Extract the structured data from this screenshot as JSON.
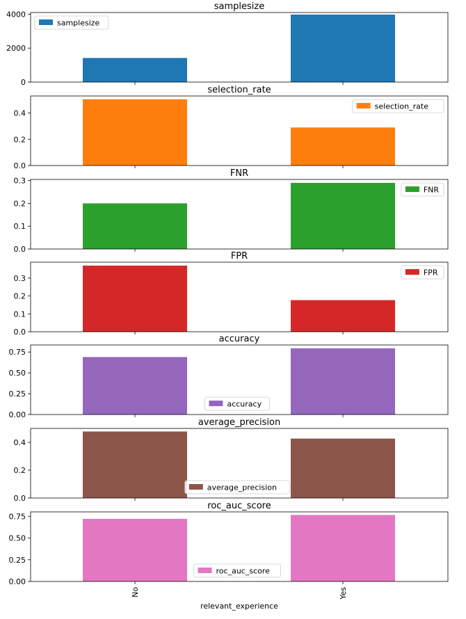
{
  "chart_data": {
    "type": "bar",
    "categories": [
      "No",
      "Yes"
    ],
    "xlabel": "relevant_experience",
    "panels": [
      {
        "title": "samplesize",
        "legend": "samplesize",
        "legend_position": "upper-left",
        "color": "#1f77b4",
        "values": [
          1420,
          3980
        ],
        "ylim": [
          0,
          4100
        ],
        "yticks": [
          0,
          2000,
          4000
        ],
        "ytick_labels": [
          "0",
          "2000",
          "4000"
        ]
      },
      {
        "title": "selection_rate",
        "legend": "selection_rate",
        "legend_position": "upper-right",
        "color": "#ff7f0e",
        "values": [
          0.505,
          0.29
        ],
        "ylim": [
          0,
          0.53
        ],
        "yticks": [
          0,
          0.2,
          0.4
        ],
        "ytick_labels": [
          "0.0",
          "0.2",
          "0.4"
        ]
      },
      {
        "title": "FNR",
        "legend": "FNR",
        "legend_position": "upper-right",
        "color": "#2ca02c",
        "values": [
          0.2,
          0.29
        ],
        "ylim": [
          0,
          0.305
        ],
        "yticks": [
          0,
          0.1,
          0.2,
          0.3
        ],
        "ytick_labels": [
          "0.0",
          "0.1",
          "0.2",
          "0.3"
        ]
      },
      {
        "title": "FPR",
        "legend": "FPR",
        "legend_position": "upper-right",
        "color": "#d62728",
        "values": [
          0.37,
          0.177
        ],
        "ylim": [
          0,
          0.389
        ],
        "yticks": [
          0,
          0.1,
          0.2,
          0.3
        ],
        "ytick_labels": [
          "0.0",
          "0.1",
          "0.2",
          "0.3"
        ]
      },
      {
        "title": "accuracy",
        "legend": "accuracy",
        "legend_position": "lower-center",
        "color": "#9467bd",
        "values": [
          0.69,
          0.795
        ],
        "ylim": [
          0,
          0.835
        ],
        "yticks": [
          0,
          0.25,
          0.5,
          0.75
        ],
        "ytick_labels": [
          "0.00",
          "0.25",
          "0.50",
          "0.75"
        ]
      },
      {
        "title": "average_precision",
        "legend": "average_precision",
        "legend_position": "lower-center",
        "color": "#8c564b",
        "values": [
          0.478,
          0.427
        ],
        "ylim": [
          0,
          0.5
        ],
        "yticks": [
          0,
          0.2,
          0.4
        ],
        "ytick_labels": [
          "0.0",
          "0.2",
          "0.4"
        ]
      },
      {
        "title": "roc_auc_score",
        "legend": "roc_auc_score",
        "legend_position": "lower-center",
        "color": "#e377c2",
        "values": [
          0.72,
          0.765
        ],
        "ylim": [
          0,
          0.8
        ],
        "yticks": [
          0,
          0.25,
          0.5,
          0.75
        ],
        "ytick_labels": [
          "0.00",
          "0.25",
          "0.50",
          "0.75"
        ]
      }
    ]
  }
}
